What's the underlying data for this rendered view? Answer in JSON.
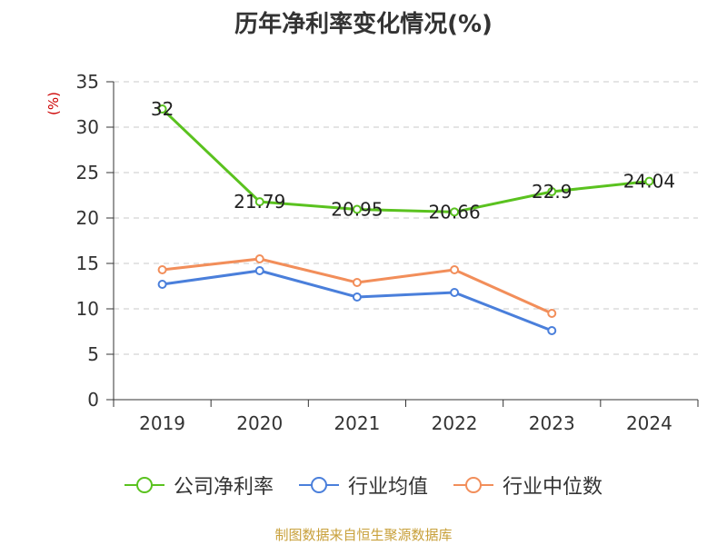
{
  "title": "历年净利率变化情况(%)",
  "source": "制图数据来自恒生聚源数据库",
  "chart_data": {
    "type": "line",
    "title": "历年净利率变化情况(%)",
    "ylabel": "(%)",
    "xlabel": "",
    "categories": [
      "2019",
      "2020",
      "2021",
      "2022",
      "2023",
      "2024"
    ],
    "ylim": [
      0,
      35
    ],
    "yticks": [
      0,
      5,
      10,
      15,
      20,
      25,
      30,
      35
    ],
    "grid": true,
    "legend_position": "bottom",
    "series": [
      {
        "name": "公司净利率",
        "color": "#5ac21f",
        "values": [
          32,
          21.79,
          20.95,
          20.66,
          22.9,
          24.04
        ],
        "labels": [
          "32",
          "21.79",
          "20.95",
          "20.66",
          "22.9",
          "24.04"
        ]
      },
      {
        "name": "行业均值",
        "color": "#4a7fdb",
        "values": [
          12.7,
          14.2,
          11.3,
          11.8,
          7.6,
          null
        ]
      },
      {
        "name": "行业中位数",
        "color": "#f28e5a",
        "values": [
          14.3,
          15.5,
          12.9,
          14.3,
          9.5,
          null
        ]
      }
    ]
  }
}
